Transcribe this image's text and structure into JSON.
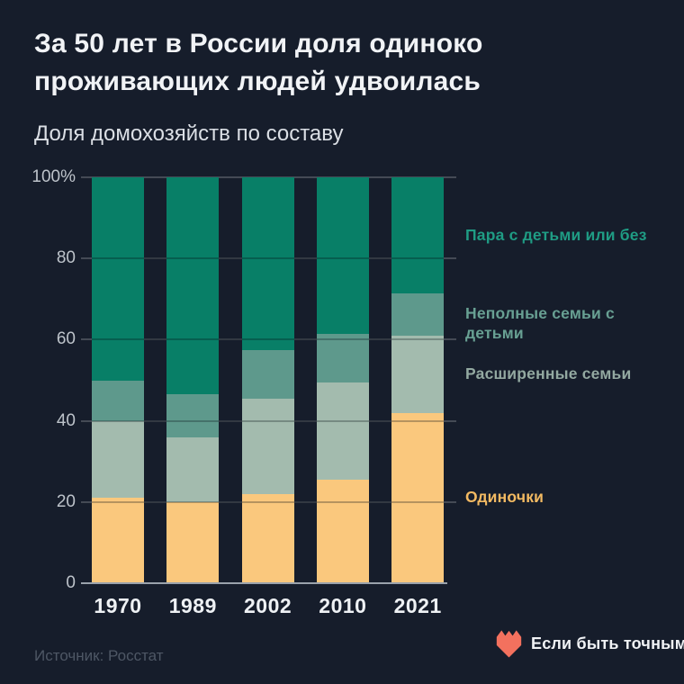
{
  "title": "За 50 лет в России доля одиноко\nпроживающих людей удвоилась",
  "subtitle": "Доля домохозяйств по составу",
  "source": "Источник: Росстат",
  "brand": {
    "name": "Если быть точным",
    "heart_color": "#f3715e"
  },
  "colors": {
    "background": "#161d2b",
    "title_text": "#f1f3f6",
    "axis_text": "#bdc3ca",
    "source_text": "#4e5765"
  },
  "chart_data": {
    "type": "bar",
    "stacked": true,
    "title": "За 50 лет в России доля одиноко проживающих людей удвоилась",
    "subtitle": "Доля домохозяйств по составу",
    "categories": [
      "1970",
      "1989",
      "2002",
      "2010",
      "2021"
    ],
    "series": [
      {
        "name": "Одиночки",
        "color": "#fac87d",
        "legend_color": "#f3ba62",
        "values": [
          21,
          20,
          22,
          25.5,
          42
        ]
      },
      {
        "name": "Расширенные семьи",
        "color": "#a3bbae",
        "legend_color": "#93a9a1",
        "values": [
          19,
          16,
          23.5,
          24,
          19
        ]
      },
      {
        "name": "Неполные семьи с детьми",
        "color": "#5e998c",
        "legend_color": "#68a093",
        "values": [
          10,
          10.5,
          12,
          12,
          10.5
        ]
      },
      {
        "name": "Пара с детьми или без",
        "color": "#087f67",
        "legend_color": "#1f9c84",
        "values": [
          50,
          53.5,
          42.5,
          38.5,
          28.5
        ]
      }
    ],
    "xlabel": "",
    "ylabel": "",
    "ylim": [
      0,
      100
    ],
    "yticks": [
      {
        "value": 100,
        "label": "100%"
      },
      {
        "value": 80,
        "label": "80"
      },
      {
        "value": 60,
        "label": "60"
      },
      {
        "value": 40,
        "label": "40"
      },
      {
        "value": 20,
        "label": "20"
      },
      {
        "value": 0,
        "label": "0"
      }
    ],
    "grid": true,
    "legend_position": "right"
  }
}
